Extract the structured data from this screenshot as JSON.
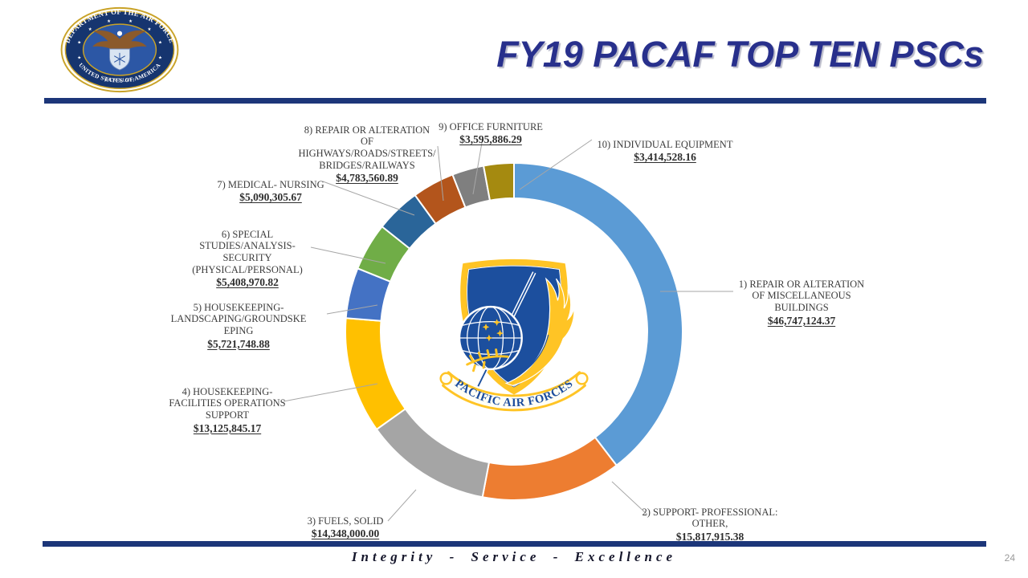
{
  "slide": {
    "title": "FY19 PACAF TOP TEN PSCs",
    "motto": "Integrity - Service - Excellence",
    "page_number": "24",
    "accent_bar_color": "#1C3679",
    "title_color": "#28308C"
  },
  "seal": {
    "top_text": "DEPARTMENT OF THE AIR FORCE",
    "bottom_text": "UNITED STATES OF AMERICA",
    "year_text": "MCMXLVII"
  },
  "emblem": {
    "banner_text": "PACIFIC AIR FORCES"
  },
  "chart_data": {
    "type": "pie",
    "subtype": "donut",
    "title": "FY19 PACAF Top Ten PSCs",
    "start_angle_deg": 0,
    "direction": "clockwise",
    "hole_ratio": 0.79,
    "legend_position": "none",
    "total": 118053885.63,
    "points": [
      {
        "label": "1) REPAIR OR ALTERATION\nOF MISCELLANEOUS\nBUILDINGS",
        "amount": "$46,747,124.37",
        "value": 46747124.37,
        "color": "#5B9BD5"
      },
      {
        "label": "2) SUPPORT- PROFESSIONAL:\nOTHER,",
        "amount": "$15,817,915.38",
        "value": 15817915.38,
        "color": "#ED7D31"
      },
      {
        "label": "3) FUELS, SOLID",
        "amount": "$14,348,000.00",
        "value": 14348000.0,
        "color": "#A5A5A5"
      },
      {
        "label": "4) HOUSEKEEPING-\nFACILITIES OPERATIONS\nSUPPORT",
        "amount": "$13,125,845.17",
        "value": 13125845.17,
        "color": "#FFC000"
      },
      {
        "label": "5) HOUSEKEEPING-\nLANDSCAPING/GROUNDSKE\nEPING",
        "amount": "$5,721,748.88",
        "value": 5721748.88,
        "color": "#4472C4"
      },
      {
        "label": "6) SPECIAL\nSTUDIES/ANALYSIS-\nSECURITY\n(PHYSICAL/PERSONAL)",
        "amount": "$5,408,970.82",
        "value": 5408970.82,
        "color": "#70AD47"
      },
      {
        "label": "7) MEDICAL- NURSING",
        "amount": "$5,090,305.67",
        "value": 5090305.67,
        "color": "#2A6599"
      },
      {
        "label": "8) REPAIR OR ALTERATION\nOF\nHIGHWAYS/ROADS/STREETS/\nBRIDGES/RAILWAYS",
        "amount": "$4,783,560.89",
        "value": 4783560.89,
        "color": "#B3551C"
      },
      {
        "label": "9) OFFICE FURNITURE",
        "amount": "$3,595,886.29",
        "value": 3595886.29,
        "color": "#7F7F7F"
      },
      {
        "label": "10) INDIVIDUAL EQUIPMENT",
        "amount": "$3,414,528.16",
        "value": 3414528.16,
        "color": "#A58A10"
      }
    ]
  }
}
